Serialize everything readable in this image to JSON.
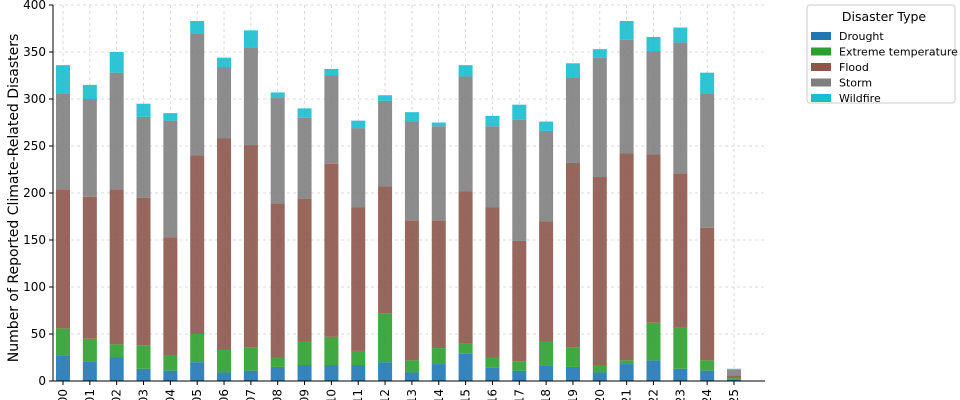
{
  "chart_data": {
    "type": "bar",
    "stacked": true,
    "title": "",
    "xlabel": "",
    "ylabel": "Number of Reported Climate-Related Disasters",
    "ylim": [
      0,
      400
    ],
    "yticks": [
      0,
      50,
      100,
      150,
      200,
      250,
      300,
      350,
      400
    ],
    "grid": true,
    "legend": {
      "title": "Disaster Type",
      "placement": "outside-top-right"
    },
    "categories": [
      "00",
      "01",
      "02",
      "03",
      "04",
      "05",
      "06",
      "07",
      "08",
      "09",
      "10",
      "11",
      "12",
      "13",
      "14",
      "15",
      "16",
      "17",
      "18",
      "19",
      "20",
      "21",
      "22",
      "23",
      "24",
      "25"
    ],
    "series": [
      {
        "name": "Drought",
        "color": "#1f77b4",
        "values": [
          27,
          21,
          25,
          13,
          11,
          20,
          9,
          11,
          15,
          17,
          17,
          17,
          20,
          9,
          18,
          29,
          14,
          11,
          16,
          15,
          9,
          18,
          22,
          13,
          11,
          2
        ]
      },
      {
        "name": "Extreme temperature",
        "color": "#2ca02c",
        "values": [
          29,
          24,
          14,
          25,
          16,
          30,
          24,
          25,
          10,
          25,
          30,
          15,
          52,
          13,
          17,
          11,
          11,
          10,
          26,
          21,
          8,
          4,
          40,
          44,
          11,
          1
        ]
      },
      {
        "name": "Flood",
        "color": "#8c564b",
        "values": [
          148,
          151,
          165,
          157,
          126,
          190,
          225,
          215,
          164,
          152,
          184,
          153,
          135,
          149,
          136,
          162,
          160,
          128,
          128,
          196,
          200,
          220,
          179,
          164,
          141,
          3
        ]
      },
      {
        "name": "Storm",
        "color": "#7f7f7f",
        "values": [
          102,
          104,
          124,
          86,
          124,
          130,
          76,
          104,
          112,
          86,
          94,
          84,
          91,
          105,
          100,
          122,
          86,
          129,
          96,
          91,
          127,
          121,
          110,
          139,
          143,
          6
        ]
      },
      {
        "name": "Wildfire",
        "color": "#17becf",
        "values": [
          30,
          15,
          22,
          14,
          8,
          13,
          10,
          18,
          6,
          10,
          7,
          8,
          6,
          10,
          4,
          12,
          11,
          16,
          10,
          15,
          9,
          20,
          15,
          16,
          22,
          1
        ]
      }
    ]
  }
}
